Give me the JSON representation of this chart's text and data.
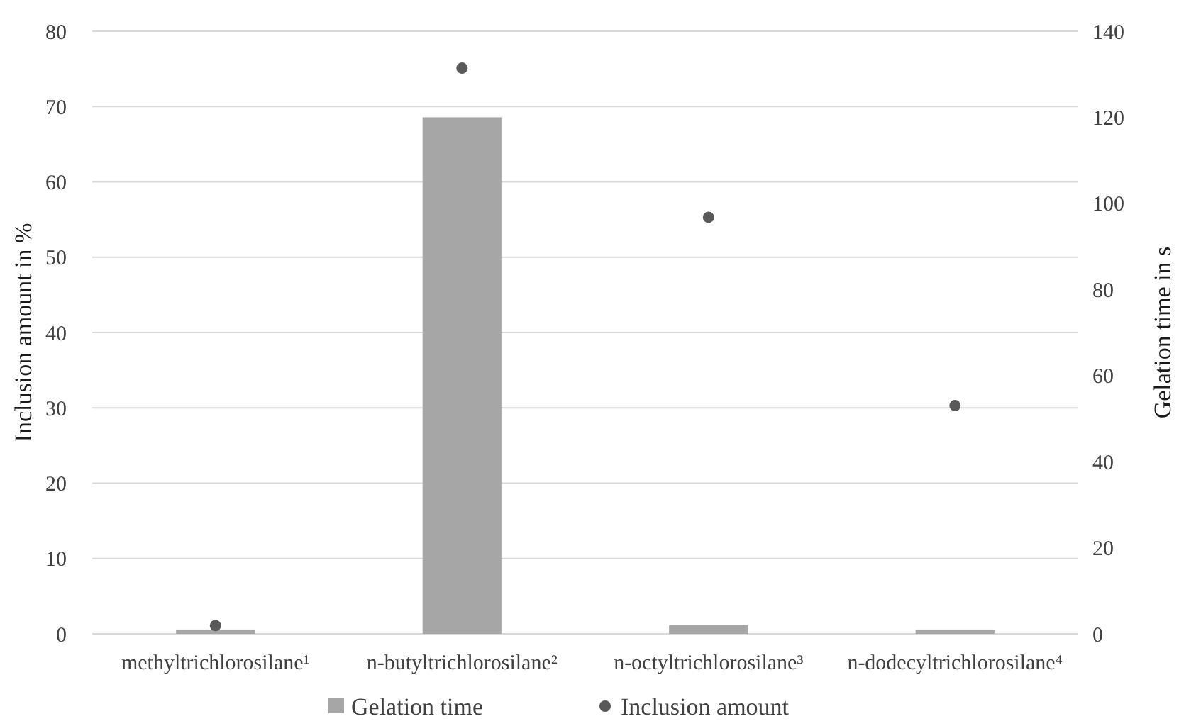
{
  "chart_data": {
    "type": "bar",
    "ylabel": "Inclusion amount in %",
    "y2label": "Gelation time in s",
    "categories": [
      "methyltrichlorosilane¹",
      "n-butyltrichlorosilane²",
      "n-octyltrichlorosilane³",
      "n-dodecyltrichlorosilane⁴"
    ],
    "series": [
      {
        "name": "Gelation time",
        "axis": "y2",
        "color": "#a6a6a6",
        "values": [
          1,
          120,
          2,
          1
        ]
      },
      {
        "name": "Inclusion amount",
        "type": "scatter",
        "axis": "y",
        "color": "#595959",
        "values": [
          1.1,
          75.1,
          55.3,
          30.3
        ]
      }
    ],
    "ylim": [
      0,
      80
    ],
    "yticks": [
      0,
      10,
      20,
      30,
      40,
      50,
      60,
      70,
      80
    ],
    "y2lim": [
      0,
      140
    ],
    "y2ticks": [
      0,
      20,
      40,
      60,
      80,
      100,
      120,
      140
    ],
    "grid": "y",
    "legend": "bottom",
    "marker": "circle"
  }
}
